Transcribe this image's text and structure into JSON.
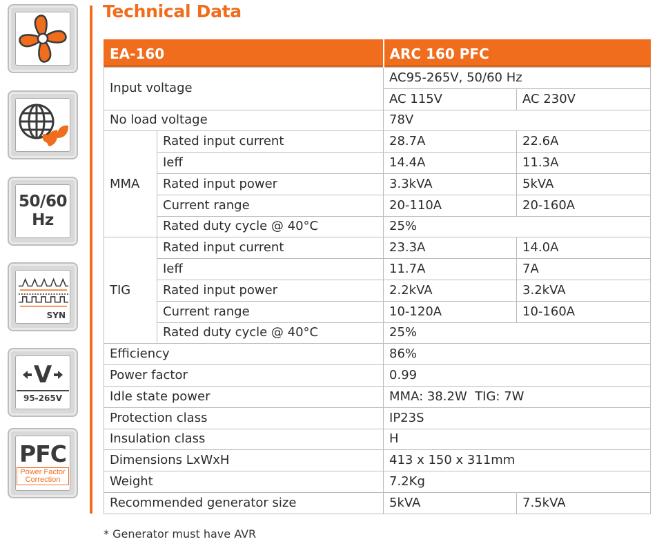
{
  "title": "Technical Data",
  "badges": {
    "hz_line1": "50/60",
    "hz_line2": "Hz",
    "syn": "SYN",
    "volt_letter": "V",
    "volt_range": "95-265V",
    "pfc": "PFC",
    "pfc_sub": "Power Factor Correction"
  },
  "colors": {
    "accent": "#ef6d1d",
    "border": "#bcbcbc",
    "text": "#2b2b2b"
  },
  "table": {
    "header": {
      "col1": "EA-160",
      "col2": "ARC 160 PFC"
    },
    "input_voltage": {
      "label": "Input voltage",
      "range": "AC95-265V, 50/60 Hz",
      "v1": "AC 115V",
      "v2": "AC 230V"
    },
    "no_load": {
      "label": "No load voltage",
      "value": "78V"
    },
    "mma": {
      "group": "MMA",
      "rows": [
        {
          "label": "Rated input current",
          "v1": "28.7A",
          "v2": "22.6A"
        },
        {
          "label": "Ieff",
          "v1": "14.4A",
          "v2": "11.3A"
        },
        {
          "label": "Rated input power",
          "v1": "3.3kVA",
          "v2": "5kVA"
        },
        {
          "label": "Current range",
          "v1": "20-110A",
          "v2": "20-160A"
        },
        {
          "label": "Rated duty cycle @ 40°C",
          "v1": "25%"
        }
      ]
    },
    "tig": {
      "group": "TIG",
      "rows": [
        {
          "label": "Rated input current",
          "v1": "23.3A",
          "v2": "14.0A"
        },
        {
          "label": "Ieff",
          "v1": "11.7A",
          "v2": "7A"
        },
        {
          "label": "Rated input power",
          "v1": "2.2kVA",
          "v2": "3.2kVA"
        },
        {
          "label": "Current range",
          "v1": "10-120A",
          "v2": "10-160A"
        },
        {
          "label": "Rated duty cycle @ 40°C",
          "v1": "25%"
        }
      ]
    },
    "general": [
      {
        "label": "Efficiency",
        "value": "86%"
      },
      {
        "label": "Power factor",
        "value": "0.99"
      },
      {
        "label": "Idle state power",
        "value": "MMA: 38.2W  TIG: 7W"
      },
      {
        "label": "Protection class",
        "value": "IP23S"
      },
      {
        "label": "Insulation class",
        "value": "H"
      },
      {
        "label": "Dimensions LxWxH",
        "value": "413 x 150 x 311mm"
      },
      {
        "label": "Weight",
        "value": "7.2Kg"
      }
    ],
    "generator": {
      "label": "Recommended generator size",
      "v1": "5kVA",
      "v2": "7.5kVA"
    }
  },
  "footnote": "* Generator must have AVR"
}
